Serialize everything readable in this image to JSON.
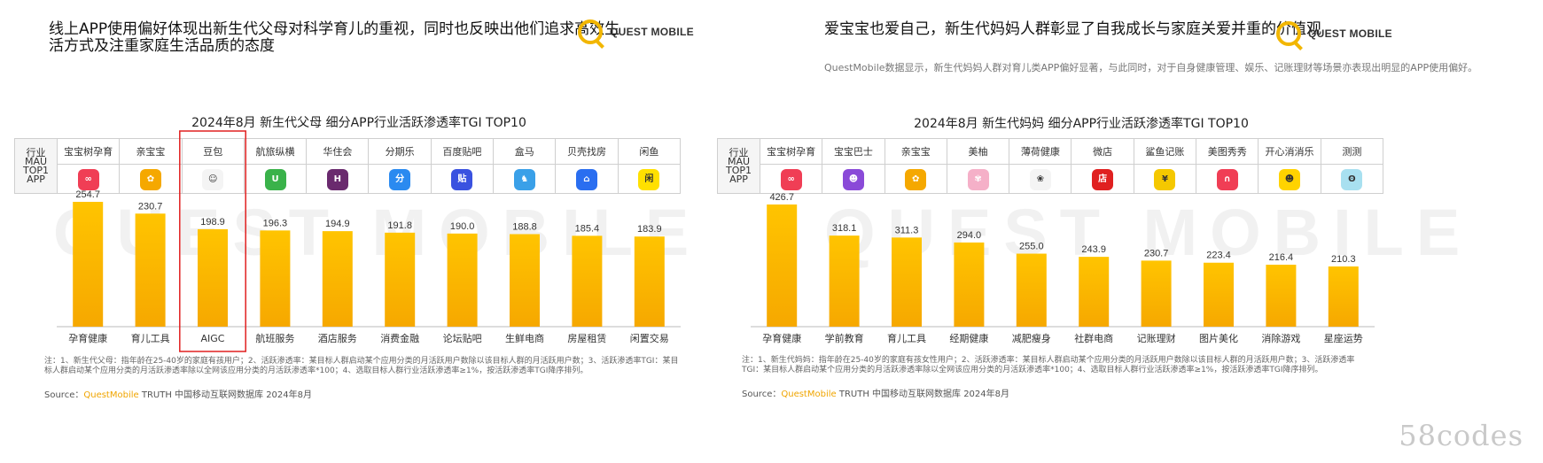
{
  "brand": {
    "name": "QUEST MOBILE",
    "accent": "#f2b600"
  },
  "left": {
    "title": "线上APP使用偏好体现出新生代父母对科学育儿的重视，同时也反映出他们追求高效生活方式及注重家庭生活品质的态度",
    "chart_title": "2024年8月  新生代父母 细分APP行业活跃渗透率TGI TOP10",
    "row_label": "行业MAU TOP1 APP",
    "apps": [
      "宝宝树孕育",
      "亲宝宝",
      "豆包",
      "航旅纵横",
      "华住会",
      "分期乐",
      "百度贴吧",
      "盒马",
      "贝壳找房",
      "闲鱼"
    ],
    "icons": [
      {
        "name": "baobaoshu-icon",
        "color": "#f03e55",
        "glyph": "∞"
      },
      {
        "name": "qinbaobao-icon",
        "color": "#f5a800",
        "glyph": "✿"
      },
      {
        "name": "doubao-icon",
        "color": "#f4f4f4",
        "glyph": "☺"
      },
      {
        "name": "hanglv-icon",
        "color": "#3ab24a",
        "glyph": "U"
      },
      {
        "name": "huazhu-icon",
        "color": "#6a2a6e",
        "glyph": "H"
      },
      {
        "name": "fenqile-icon",
        "color": "#2a8af0",
        "glyph": "分"
      },
      {
        "name": "tieba-icon",
        "color": "#3a52e0",
        "glyph": "贴"
      },
      {
        "name": "hema-icon",
        "color": "#3aa0e8",
        "glyph": "♞"
      },
      {
        "name": "beike-icon",
        "color": "#2a6ef0",
        "glyph": "⌂"
      },
      {
        "name": "xianyu-icon",
        "color": "#ffe000",
        "glyph": "闲"
      }
    ],
    "footnote": "注：1、新生代父母：指年龄在25-40岁的家庭有孩用户；2、活跃渗透率：某目标人群启动某个应用分类的月活跃用户数除以该目标人群的月活跃用户数；3、活跃渗透率TGI：某目标人群启动某个应用分类的月活跃渗透率除以全网该应用分类的月活跃渗透率*100；4、选取目标人群行业活跃渗透率≥1%，按活跃渗透率TGI降序排列。",
    "source_prefix": "Source：",
    "source_brand": "QuestMobile",
    "source_rest": " TRUTH 中国移动互联网数据库 2024年8月",
    "watermark": "QUEST MOBILE",
    "highlight_color": "#e02020"
  },
  "right": {
    "title": "爱宝宝也爱自己，新生代妈妈人群彰显了自我成长与家庭关爱并重的价值观",
    "subtitle": "QuestMobile数据显示，新生代妈妈人群对育儿类APP偏好显著，与此同时，对于自身健康管理、娱乐、记账理财等场景亦表现出明显的APP使用偏好。",
    "chart_title": "2024年8月  新生代妈妈 细分APP行业活跃渗透率TGI TOP10",
    "row_label": "行业MAU TOP1 APP",
    "apps": [
      "宝宝树孕育",
      "宝宝巴士",
      "亲宝宝",
      "美柚",
      "薄荷健康",
      "微店",
      "鲨鱼记账",
      "美图秀秀",
      "开心消消乐",
      "测测"
    ],
    "icons": [
      {
        "name": "baobaoshu-icon",
        "color": "#f03e55",
        "glyph": "∞"
      },
      {
        "name": "baobaobashi-icon",
        "color": "#8a4ad8",
        "glyph": "☻"
      },
      {
        "name": "qinbaobao-icon",
        "color": "#f5a800",
        "glyph": "✿"
      },
      {
        "name": "meiyou-icon",
        "color": "#f5b0c8",
        "glyph": "✾"
      },
      {
        "name": "bohe-icon",
        "color": "#f4f4f4",
        "glyph": "❀"
      },
      {
        "name": "weidian-icon",
        "color": "#e02020",
        "glyph": "店"
      },
      {
        "name": "shayu-icon",
        "color": "#f5c800",
        "glyph": "¥"
      },
      {
        "name": "meitu-icon",
        "color": "#f03e55",
        "glyph": "∩"
      },
      {
        "name": "xiaoxiaole-icon",
        "color": "#ffd300",
        "glyph": "☻"
      },
      {
        "name": "cece-icon",
        "color": "#a8e0f0",
        "glyph": "ʘ"
      }
    ],
    "footnote": "注：1、新生代妈妈：指年龄在25-40岁的家庭有孩女性用户；2、活跃渗透率：某目标人群启动某个应用分类的月活跃用户数除以该目标人群的月活跃用户数；3、活跃渗透率TGI：某目标人群启动某个应用分类的月活跃渗透率除以全网该应用分类的月活跃渗透率*100；4、选取目标人群行业活跃渗透率≥1%，按活跃渗透率TGI降序排列。",
    "source_prefix": "Source：",
    "source_brand": "QuestMobile",
    "source_rest": " TRUTH 中国移动互联网数据库 2024年8月",
    "watermark": "QUEST MOBILE"
  },
  "site_watermark": "58codes",
  "chart_data": [
    {
      "type": "bar",
      "title": "2024年8月  新生代父母 细分APP行业活跃渗透率TGI TOP10",
      "categories": [
        "孕育健康",
        "育儿工具",
        "AIGC",
        "航班服务",
        "酒店服务",
        "消费金融",
        "论坛贴吧",
        "生鲜电商",
        "房屋租赁",
        "闲置交易"
      ],
      "values": [
        254.7,
        230.7,
        198.9,
        196.3,
        194.9,
        191.8,
        190.0,
        188.8,
        185.4,
        183.9
      ],
      "highlight_index": 2,
      "bar_color": "#fbb800",
      "ylim": [
        0,
        260
      ],
      "grid": false
    },
    {
      "type": "bar",
      "title": "2024年8月  新生代妈妈 细分APP行业活跃渗透率TGI TOP10",
      "categories": [
        "孕育健康",
        "学前教育",
        "育儿工具",
        "经期健康",
        "减肥瘦身",
        "社群电商",
        "记账理财",
        "图片美化",
        "消除游戏",
        "星座运势"
      ],
      "values": [
        426.7,
        318.1,
        311.3,
        294.0,
        255.0,
        243.9,
        230.7,
        223.4,
        216.4,
        210.3
      ],
      "bar_color": "#fbb800",
      "ylim": [
        0,
        430
      ],
      "grid": false
    }
  ]
}
